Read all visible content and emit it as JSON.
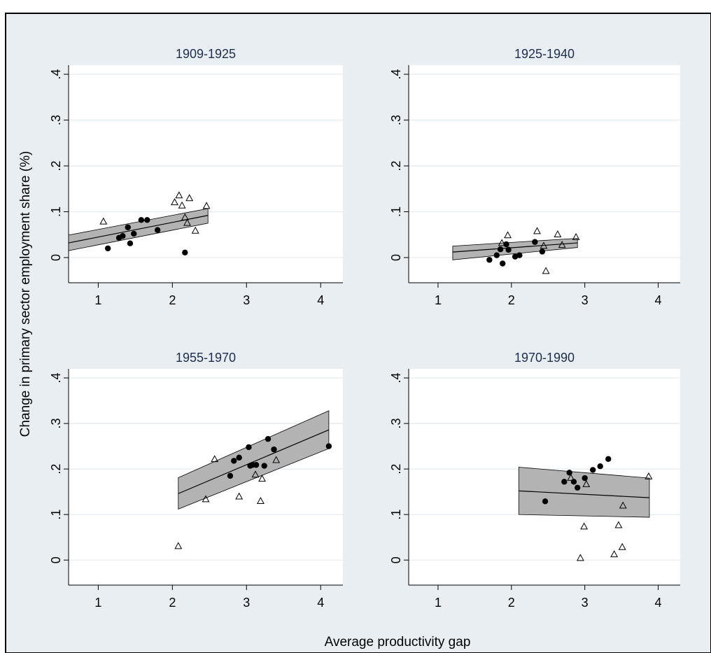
{
  "figure": {
    "ylabel": "Change in primary sector employment share (%)",
    "xlabel": "Average productivity gap",
    "background": "#e8eef2",
    "title_color": "#1f2d4d"
  },
  "chart_data": [
    {
      "type": "scatter",
      "title": "1909-1925",
      "xlim": [
        0.6,
        4.3
      ],
      "ylim": [
        -0.055,
        0.42
      ],
      "xticks": [
        1,
        2,
        3,
        4
      ],
      "xtick_labels": [
        "1",
        "2",
        "3",
        "4"
      ],
      "yticks": [
        0,
        0.1,
        0.2,
        0.3,
        0.4
      ],
      "ytick_labels": [
        "0",
        ".1",
        ".2",
        ".3",
        ".4"
      ],
      "grid": true,
      "series": [
        {
          "marker": "filled-circle",
          "points": [
            [
              1.13,
              0.02
            ],
            [
              1.28,
              0.043
            ],
            [
              1.33,
              0.047
            ],
            [
              1.4,
              0.066
            ],
            [
              1.43,
              0.031
            ],
            [
              1.48,
              0.052
            ],
            [
              1.58,
              0.082
            ],
            [
              1.66,
              0.082
            ],
            [
              1.8,
              0.06
            ],
            [
              2.17,
              0.011
            ]
          ]
        },
        {
          "marker": "hollow-triangle",
          "points": [
            [
              1.07,
              0.078
            ],
            [
              2.03,
              0.12
            ],
            [
              2.09,
              0.135
            ],
            [
              2.13,
              0.113
            ],
            [
              2.17,
              0.087
            ],
            [
              2.2,
              0.075
            ],
            [
              2.23,
              0.129
            ],
            [
              2.31,
              0.058
            ],
            [
              2.46,
              0.112
            ]
          ]
        }
      ],
      "fit": {
        "x": [
          0.6,
          2.48
        ],
        "y": [
          0.032,
          0.092
        ],
        "ci_upper": [
          0.049,
          0.107
        ],
        "ci_lower": [
          0.015,
          0.075
        ]
      }
    },
    {
      "type": "scatter",
      "title": "1925-1940",
      "xlim": [
        0.6,
        4.3
      ],
      "ylim": [
        -0.055,
        0.42
      ],
      "xticks": [
        1,
        2,
        3,
        4
      ],
      "xtick_labels": [
        "1",
        "2",
        "3",
        "4"
      ],
      "yticks": [
        0,
        0.1,
        0.2,
        0.3,
        0.4
      ],
      "ytick_labels": [
        "0",
        ".1",
        ".2",
        ".3",
        ".4"
      ],
      "grid": true,
      "series": [
        {
          "marker": "filled-circle",
          "points": [
            [
              1.7,
              -0.005
            ],
            [
              1.8,
              0.005
            ],
            [
              1.85,
              0.018
            ],
            [
              1.88,
              -0.013
            ],
            [
              1.93,
              0.029
            ],
            [
              1.96,
              0.017
            ],
            [
              2.05,
              0.002
            ],
            [
              2.11,
              0.005
            ],
            [
              2.32,
              0.034
            ],
            [
              2.42,
              0.013
            ]
          ]
        },
        {
          "marker": "hollow-triangle",
          "points": [
            [
              1.87,
              0.031
            ],
            [
              1.95,
              0.048
            ],
            [
              2.35,
              0.057
            ],
            [
              2.44,
              0.025
            ],
            [
              2.47,
              -0.03
            ],
            [
              2.63,
              0.05
            ],
            [
              2.69,
              0.027
            ],
            [
              2.88,
              0.044
            ]
          ]
        }
      ],
      "fit": {
        "x": [
          1.2,
          2.9
        ],
        "y": [
          0.012,
          0.032
        ],
        "ci_upper": [
          0.025,
          0.042
        ],
        "ci_lower": [
          -0.005,
          0.022
        ]
      }
    },
    {
      "type": "scatter",
      "title": "1955-1970",
      "xlim": [
        0.6,
        4.3
      ],
      "ylim": [
        -0.055,
        0.42
      ],
      "xticks": [
        1,
        2,
        3,
        4
      ],
      "xtick_labels": [
        "1",
        "2",
        "3",
        "4"
      ],
      "yticks": [
        0,
        0.1,
        0.2,
        0.3,
        0.4
      ],
      "ytick_labels": [
        "0",
        ".1",
        ".2",
        ".3",
        ".4"
      ],
      "grid": true,
      "series": [
        {
          "marker": "filled-circle",
          "points": [
            [
              2.78,
              0.185
            ],
            [
              2.83,
              0.218
            ],
            [
              2.9,
              0.225
            ],
            [
              3.03,
              0.248
            ],
            [
              3.05,
              0.207
            ],
            [
              3.08,
              0.209
            ],
            [
              3.13,
              0.209
            ],
            [
              3.24,
              0.207
            ],
            [
              3.29,
              0.266
            ],
            [
              3.37,
              0.243
            ],
            [
              4.11,
              0.25
            ]
          ]
        },
        {
          "marker": "hollow-triangle",
          "points": [
            [
              2.08,
              0.03
            ],
            [
              2.45,
              0.133
            ],
            [
              2.57,
              0.221
            ],
            [
              2.9,
              0.139
            ],
            [
              3.12,
              0.187
            ],
            [
              3.19,
              0.129
            ],
            [
              3.21,
              0.178
            ],
            [
              3.4,
              0.219
            ]
          ]
        }
      ],
      "fit": {
        "x": [
          2.08,
          4.11
        ],
        "y": [
          0.146,
          0.286
        ],
        "ci_upper": [
          0.181,
          0.328
        ],
        "ci_lower": [
          0.112,
          0.245
        ]
      }
    },
    {
      "type": "scatter",
      "title": "1970-1990",
      "xlim": [
        0.6,
        4.3
      ],
      "ylim": [
        -0.055,
        0.42
      ],
      "xticks": [
        1,
        2,
        3,
        4
      ],
      "xtick_labels": [
        "1",
        "2",
        "3",
        "4"
      ],
      "yticks": [
        0,
        0.1,
        0.2,
        0.3,
        0.4
      ],
      "ytick_labels": [
        "0",
        ".1",
        ".2",
        ".3",
        ".4"
      ],
      "grid": true,
      "series": [
        {
          "marker": "filled-circle",
          "points": [
            [
              2.46,
              0.129
            ],
            [
              2.72,
              0.172
            ],
            [
              2.79,
              0.192
            ],
            [
              2.85,
              0.172
            ],
            [
              2.9,
              0.159
            ],
            [
              3.0,
              0.18
            ],
            [
              3.11,
              0.198
            ],
            [
              3.21,
              0.206
            ],
            [
              3.32,
              0.222
            ]
          ]
        },
        {
          "marker": "hollow-triangle",
          "points": [
            [
              2.81,
              0.18
            ],
            [
              2.94,
              0.004
            ],
            [
              2.99,
              0.073
            ],
            [
              3.02,
              0.166
            ],
            [
              3.4,
              0.012
            ],
            [
              3.46,
              0.076
            ],
            [
              3.51,
              0.028
            ],
            [
              3.52,
              0.119
            ],
            [
              3.87,
              0.183
            ]
          ]
        }
      ],
      "fit": {
        "x": [
          2.1,
          3.88
        ],
        "y": [
          0.152,
          0.137
        ],
        "ci_upper": [
          0.204,
          0.18
        ],
        "ci_lower": [
          0.1,
          0.094
        ]
      }
    }
  ]
}
